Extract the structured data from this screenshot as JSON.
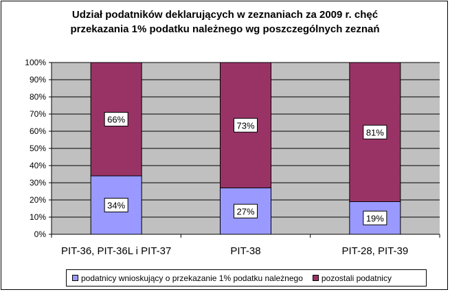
{
  "chart_data": {
    "type": "bar",
    "stacked": "percent",
    "title": [
      "Udział podatników deklarujących w zeznaniach za 2009 r. chęć",
      "przekazania 1% podatku należnego wg poszczególnych zeznań"
    ],
    "categories": [
      "PIT-36, PIT-36L i PIT-37",
      "PIT-38",
      "PIT-28, PIT-39"
    ],
    "series": [
      {
        "name": "podatnicy wnioskujący o przekazanie 1% podatku należnego",
        "values": [
          34,
          27,
          19
        ],
        "labels": [
          "34%",
          "27%",
          "19%"
        ],
        "color": "#9999ff"
      },
      {
        "name": "pozostali podatnicy",
        "values": [
          66,
          73,
          81
        ],
        "labels": [
          "66%",
          "73%",
          "81%"
        ],
        "color": "#993366"
      }
    ],
    "y_ticks": [
      "0%",
      "10%",
      "20%",
      "30%",
      "40%",
      "50%",
      "60%",
      "70%",
      "80%",
      "90%",
      "100%"
    ],
    "ylim": [
      0,
      100
    ],
    "plot_background": "#c0c0c0",
    "grid": true,
    "legend_position": "bottom"
  }
}
